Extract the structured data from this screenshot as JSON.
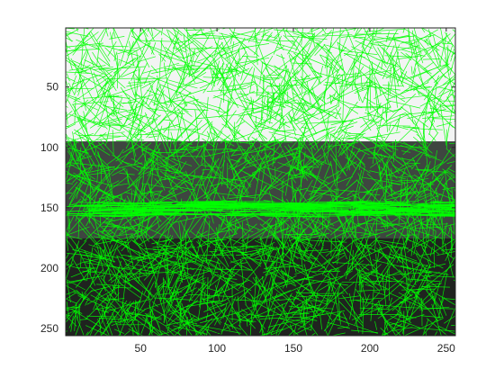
{
  "chart_data": {
    "type": "image",
    "xlim": [
      1,
      256
    ],
    "ylim": [
      1,
      256
    ],
    "y_axis_direction": "reversed",
    "xticks": [
      50,
      100,
      150,
      200,
      250
    ],
    "yticks": [
      50,
      100,
      150,
      200,
      250
    ],
    "xtick_labels": [
      "50",
      "100",
      "150",
      "200",
      "250"
    ],
    "ytick_labels": [
      "50",
      "100",
      "150",
      "200",
      "250"
    ],
    "grid": false,
    "legend": "none",
    "overlay": {
      "mark": "line-segments",
      "color": "#00ff00",
      "description_color_only": true
    },
    "image_regions": [
      {
        "label_color": "#f2f4f3",
        "y_from": 1,
        "y_to": 95
      },
      {
        "label_color": "#3e4640",
        "y_from": 95,
        "y_to": 175
      },
      {
        "label_color": "#1f231f",
        "y_from": 175,
        "y_to": 256
      }
    ]
  },
  "colors": {
    "axis": "#262626",
    "overlay": "#00ff00",
    "background": "#ffffff"
  }
}
